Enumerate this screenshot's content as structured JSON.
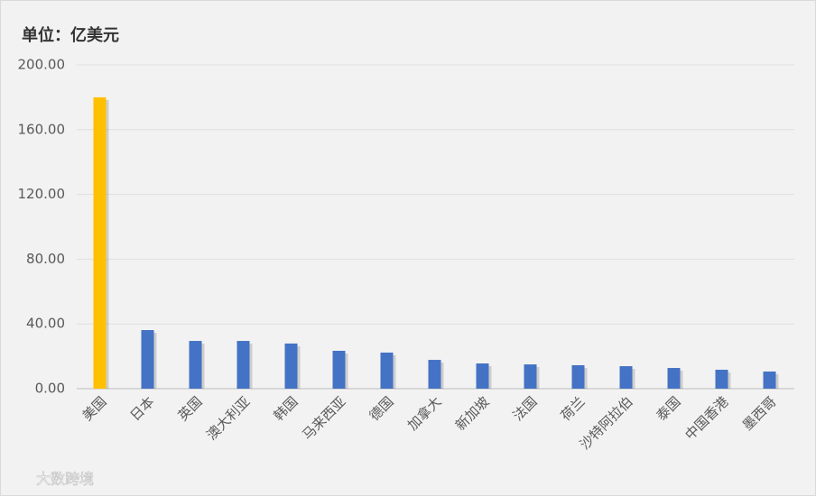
{
  "chart_data": {
    "type": "bar",
    "title": "单位：亿美元",
    "watermark": "大数跨境",
    "categories": [
      "美国",
      "日本",
      "英国",
      "澳大利亚",
      "韩国",
      "马来西亚",
      "德国",
      "加拿大",
      "新加坡",
      "法国",
      "荷兰",
      "沙特阿拉伯",
      "泰国",
      "中国香港",
      "墨西哥"
    ],
    "values": [
      180,
      36.2,
      29.5,
      29.5,
      27.9,
      23.4,
      22.3,
      17.8,
      15.6,
      15,
      14.5,
      13.9,
      12.8,
      11.7,
      10.6
    ],
    "colors": [
      "#FFC000",
      "#4472C4",
      "#4472C4",
      "#4472C4",
      "#4472C4",
      "#4472C4",
      "#4472C4",
      "#4472C4",
      "#4472C4",
      "#4472C4",
      "#4472C4",
      "#4472C4",
      "#4472C4",
      "#4472C4",
      "#4472C4"
    ],
    "ylim": [
      0,
      200
    ],
    "yticks": [
      {
        "value": 0,
        "label": "0.00"
      },
      {
        "value": 40,
        "label": "40.00"
      },
      {
        "value": 80,
        "label": "80.00"
      },
      {
        "value": 120,
        "label": "120.00"
      },
      {
        "value": 160,
        "label": "160.00"
      },
      {
        "value": 200,
        "label": "200.00"
      }
    ],
    "grid": true
  }
}
